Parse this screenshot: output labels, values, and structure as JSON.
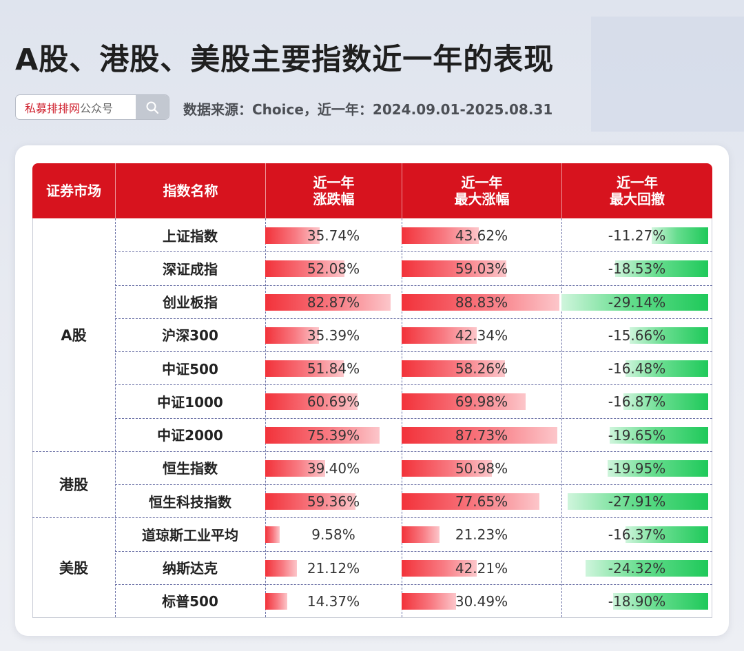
{
  "title": "A股、港股、美股主要指数近一年的表现",
  "search": {
    "brand": "私募排排网",
    "suffix": "公众号",
    "icon": "search-icon"
  },
  "source": "数据来源：Choice，近一年：2024.09.01-2025.08.31",
  "colors": {
    "header": "#d7131e",
    "positive": "#f2323a",
    "negative": "#1fc95a"
  },
  "chart_data": {
    "type": "table",
    "title": "A股、港股、美股主要指数近一年的表现",
    "columns": [
      {
        "line1": "证券市场",
        "line2": ""
      },
      {
        "line1": "指数名称",
        "line2": ""
      },
      {
        "line1": "近一年",
        "line2": "涨跌幅"
      },
      {
        "line1": "近一年",
        "line2": "最大涨幅"
      },
      {
        "line1": "近一年",
        "line2": "最大回撤"
      }
    ],
    "markets": [
      {
        "name": "A股",
        "rows": 7
      },
      {
        "name": "港股",
        "rows": 2
      },
      {
        "name": "美股",
        "rows": 3
      }
    ],
    "rows": [
      {
        "market": "A股",
        "name": "上证指数",
        "change": 35.74,
        "change_label": "35.74%",
        "max_gain": 43.62,
        "max_gain_label": "43.62%",
        "max_drawdown": -11.27,
        "max_drawdown_label": "-11.27%"
      },
      {
        "market": "A股",
        "name": "深证成指",
        "change": 52.08,
        "change_label": "52.08%",
        "max_gain": 59.03,
        "max_gain_label": "59.03%",
        "max_drawdown": -18.53,
        "max_drawdown_label": "-18.53%"
      },
      {
        "market": "A股",
        "name": "创业板指",
        "change": 82.87,
        "change_label": "82.87%",
        "max_gain": 88.83,
        "max_gain_label": "88.83%",
        "max_drawdown": -29.14,
        "max_drawdown_label": "-29.14%"
      },
      {
        "market": "A股",
        "name": "沪深300",
        "change": 35.39,
        "change_label": "35.39%",
        "max_gain": 42.34,
        "max_gain_label": "42.34%",
        "max_drawdown": -15.66,
        "max_drawdown_label": "-15.66%"
      },
      {
        "market": "A股",
        "name": "中证500",
        "change": 51.84,
        "change_label": "51.84%",
        "max_gain": 58.26,
        "max_gain_label": "58.26%",
        "max_drawdown": -16.48,
        "max_drawdown_label": "-16.48%"
      },
      {
        "market": "A股",
        "name": "中证1000",
        "change": 60.69,
        "change_label": "60.69%",
        "max_gain": 69.98,
        "max_gain_label": "69.98%",
        "max_drawdown": -16.87,
        "max_drawdown_label": "-16.87%"
      },
      {
        "market": "A股",
        "name": "中证2000",
        "change": 75.39,
        "change_label": "75.39%",
        "max_gain": 87.73,
        "max_gain_label": "87.73%",
        "max_drawdown": -19.65,
        "max_drawdown_label": "-19.65%"
      },
      {
        "market": "港股",
        "name": "恒生指数",
        "change": 39.4,
        "change_label": "39.40%",
        "max_gain": 50.98,
        "max_gain_label": "50.98%",
        "max_drawdown": -19.95,
        "max_drawdown_label": "-19.95%"
      },
      {
        "market": "港股",
        "name": "恒生科技指数",
        "change": 59.36,
        "change_label": "59.36%",
        "max_gain": 77.65,
        "max_gain_label": "77.65%",
        "max_drawdown": -27.91,
        "max_drawdown_label": "-27.91%"
      },
      {
        "market": "美股",
        "name": "道琼斯工业平均",
        "change": 9.58,
        "change_label": "9.58%",
        "max_gain": 21.23,
        "max_gain_label": "21.23%",
        "max_drawdown": -16.37,
        "max_drawdown_label": "-16.37%"
      },
      {
        "market": "美股",
        "name": "纳斯达克",
        "change": 21.12,
        "change_label": "21.12%",
        "max_gain": 42.21,
        "max_gain_label": "42.21%",
        "max_drawdown": -24.32,
        "max_drawdown_label": "-24.32%"
      },
      {
        "market": "美股",
        "name": "标普500",
        "change": 14.37,
        "change_label": "14.37%",
        "max_gain": 30.49,
        "max_gain_label": "30.49%",
        "max_drawdown": -18.9,
        "max_drawdown_label": "-18.90%"
      }
    ],
    "scale_max_gain": 90,
    "scale_max_drawdown": 30
  }
}
